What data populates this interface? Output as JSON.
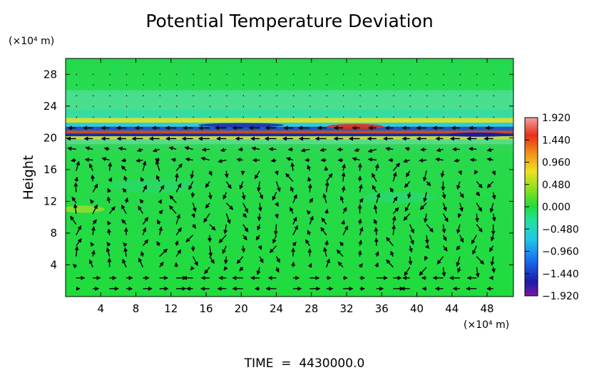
{
  "chart_data": {
    "type": "heatmap",
    "title": "Potential Temperature Deviation",
    "ylabel": "Height",
    "y_unit": "(×10⁴ m)",
    "x_unit": "(×10⁴ m)",
    "xlim": [
      0,
      51
    ],
    "ylim": [
      0,
      30
    ],
    "x_ticks": [
      4,
      8,
      12,
      16,
      20,
      24,
      28,
      32,
      36,
      40,
      44,
      48
    ],
    "y_ticks": [
      4,
      8,
      12,
      16,
      20,
      24,
      28
    ],
    "colorbar": {
      "ticks": [
        1.92,
        1.44,
        0.96,
        0.48,
        0.0,
        -0.48,
        -0.96,
        -1.44,
        -1.92
      ],
      "tick_labels": [
        "1.920",
        "1.440",
        "0.960",
        "0.480",
        "0.000",
        "−0.480",
        "−0.960",
        "−1.440",
        "−1.920"
      ],
      "range": [
        -1.92,
        1.92
      ]
    },
    "features": {
      "background_value": 0.0,
      "shear_layer_height": 20.5,
      "vectors": "wind arrows on grid, circulation cells below ~20"
    },
    "footer": "TIME  =  4430000.0"
  }
}
